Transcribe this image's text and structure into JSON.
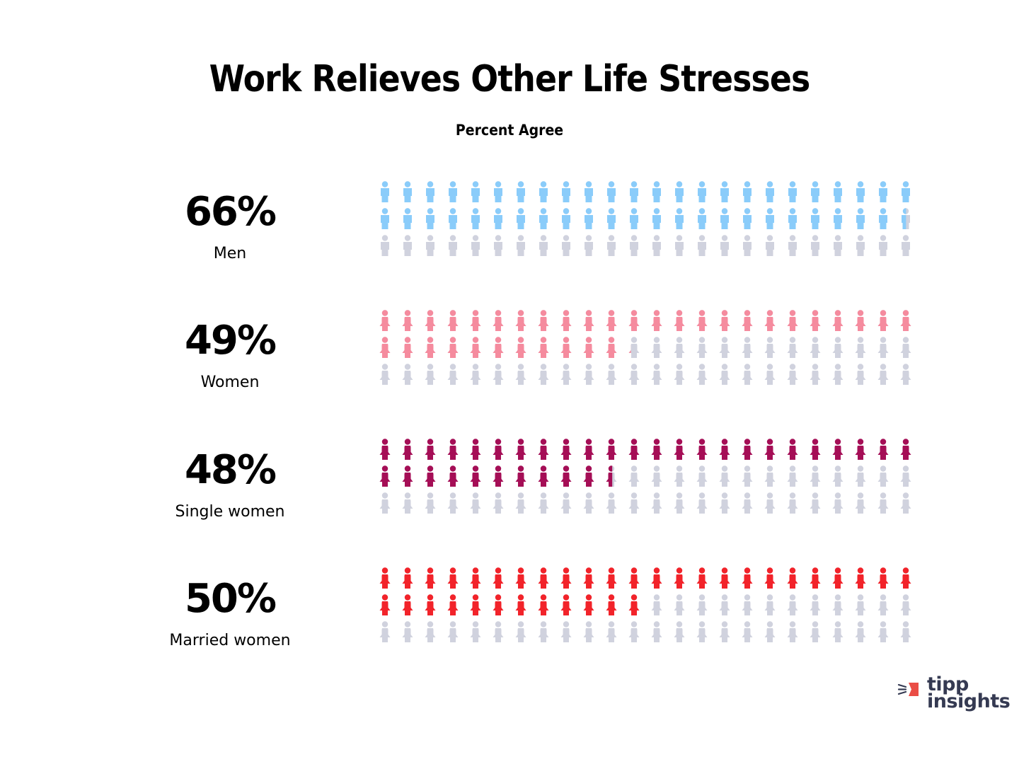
{
  "header": {
    "title": "Work Relieves Other Life Stresses",
    "subtitle": "Percent Agree"
  },
  "rows": [
    {
      "value_label": "66%",
      "category": "Men",
      "value": 66,
      "icon": "man-icon",
      "color": "#8accfa"
    },
    {
      "value_label": "49%",
      "category": "Women",
      "value": 49,
      "icon": "woman-icon",
      "color": "#f58b9e"
    },
    {
      "value_label": "48%",
      "category": "Single women",
      "value": 48,
      "icon": "woman-icon",
      "color": "#a50e56"
    },
    {
      "value_label": "50%",
      "category": "Married women",
      "value": 50,
      "icon": "woman-icon",
      "color": "#f2232a"
    }
  ],
  "grid": {
    "columns": 24,
    "rows": 3,
    "empty_color": "#d0d2de"
  },
  "logo": {
    "line1": "tipp",
    "line2": "insights",
    "accent_color": "#ea4d45",
    "text_color": "#353a52"
  },
  "chart_data": {
    "type": "pictogram",
    "title": "Work Relieves Other Life Stresses",
    "subtitle": "Percent Agree",
    "categories": [
      "Men",
      "Women",
      "Single women",
      "Married women"
    ],
    "values": [
      66,
      49,
      48,
      50
    ],
    "unit": "%",
    "icons_per_row": 72,
    "colors": [
      "#8accfa",
      "#f58b9e",
      "#a50e56",
      "#f2232a"
    ],
    "empty_color": "#d0d2de"
  }
}
